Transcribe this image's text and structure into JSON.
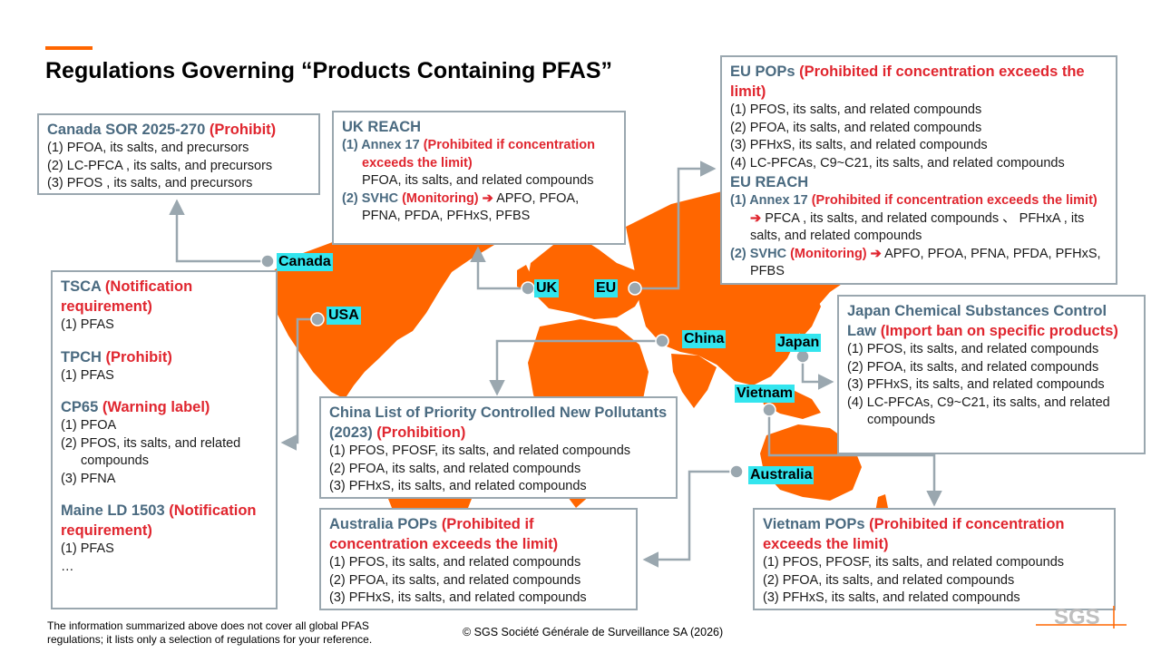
{
  "title": "Regulations Governing “Products Containing PFAS”",
  "colors": {
    "accent": "#ff6600",
    "map": "#ff6600",
    "box_border": "#9aa7af",
    "heading": "#4a6a80",
    "warning_red": "#e0262f",
    "country_label_bg": "#33e5ee"
  },
  "countries": {
    "canada": "Canada",
    "usa": "USA",
    "uk": "UK",
    "eu": "EU",
    "china": "China",
    "japan": "Japan",
    "vietnam": "Vietnam",
    "australia": "Australia"
  },
  "canada_box": {
    "title": "Canada SOR 2025-270",
    "tag": "(Prohibit)",
    "items": [
      "(1) PFOA, its salts, and precursors",
      "(2) LC-PFCA , its salts, and precursors",
      "(3) PFOS , its salts, and precursors"
    ]
  },
  "uk_box": {
    "title": "UK REACH",
    "s1_label": "(1) Annex 17",
    "s1_tag": "(Prohibited if concentration exceeds the limit)",
    "s1_text": "PFOA, its salts, and related compounds",
    "s2_label": "(2) SVHC",
    "s2_tag": "(Monitoring)",
    "s2_arrow": "➔",
    "s2_text": "APFO, PFOA, PFNA, PFDA, PFHxS, PFBS"
  },
  "eu_box": {
    "pops_title": "EU POPs",
    "pops_tag": "(Prohibited if concentration exceeds the limit)",
    "pops_items": [
      "(1) PFOS, its salts, and related compounds",
      "(2) PFOA, its salts, and related compounds",
      "(3) PFHxS, its salts, and related compounds",
      "(4) LC-PFCAs, C9~C21, its salts, and related compounds"
    ],
    "reach_title": "EU REACH",
    "s1_label": "(1) Annex 17",
    "s1_tag": "(Prohibited if concentration exceeds the limit)",
    "s1_arrow": "➔",
    "s1_text": "PFCA , its salts, and related compounds 、 PFHxA , its salts, and related compounds",
    "s2_label": "(2) SVHC",
    "s2_tag": "(Monitoring)",
    "s2_arrow": "➔",
    "s2_text": "APFO, PFOA, PFNA, PFDA, PFHxS, PFBS"
  },
  "usa_box": {
    "tsca_title": "TSCA",
    "tsca_tag": "(Notification requirement)",
    "tsca_items": [
      "(1) PFAS"
    ],
    "tpch_title": "TPCH",
    "tpch_tag": "(Prohibit)",
    "tpch_items": [
      "(1) PFAS"
    ],
    "cp65_title": "CP65",
    "cp65_tag": "(Warning label)",
    "cp65_items": [
      "(1) PFOA",
      "(2) PFOS, its salts, and related compounds",
      "(3) PFNA"
    ],
    "maine_title": "Maine LD 1503",
    "maine_tag": "(Notification requirement)",
    "maine_items": [
      "(1) PFAS",
      "…"
    ]
  },
  "japan_box": {
    "title": "Japan Chemical Substances Control Law",
    "tag": "(Import ban on specific products)",
    "items": [
      "(1) PFOS, its salts, and related compounds",
      "(2) PFOA, its salts, and related compounds",
      "(3) PFHxS, its salts, and related compounds",
      "(4) LC-PFCAs, C9~C21, its salts, and related compounds"
    ]
  },
  "china_box": {
    "title": "China List of Priority Controlled New Pollutants (2023)",
    "tag": "(Prohibition)",
    "items": [
      "(1) PFOS, PFOSF, its salts, and related compounds",
      "(2) PFOA, its salts, and related compounds",
      "(3) PFHxS, its salts, and related compounds"
    ]
  },
  "australia_box": {
    "title": "Australia POPs",
    "tag": "(Prohibited if concentration exceeds the limit)",
    "items": [
      "(1) PFOS, its salts, and related compounds",
      "(2) PFOA, its salts, and related compounds",
      "(3) PFHxS, its salts, and related compounds"
    ]
  },
  "vietnam_box": {
    "title": "Vietnam POPs",
    "tag": "(Prohibited if concentration exceeds the limit)",
    "items": [
      "(1) PFOS, PFOSF, its salts, and related compounds",
      "(2) PFOA, its salts, and related compounds",
      "(3) PFHxS, its salts, and related compounds"
    ]
  },
  "footnote": "The information summarized above does not cover all global PFAS regulations; it lists only a selection of regulations for your reference.",
  "copyright": "© SGS Société Générale de Surveillance SA (2026)",
  "logo_text": "SGS"
}
